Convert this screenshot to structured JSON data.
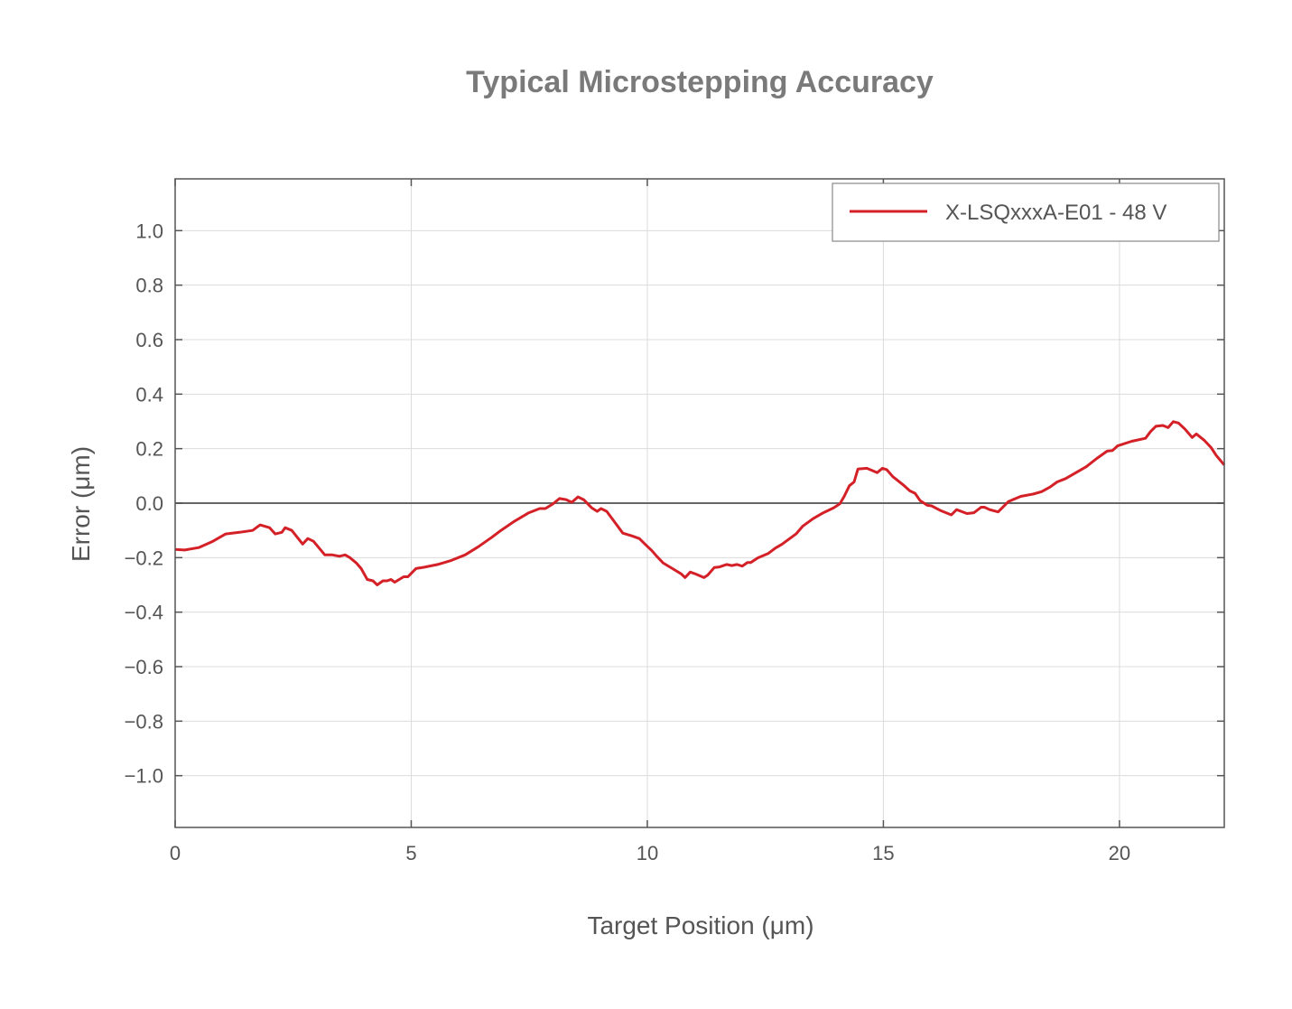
{
  "chart_data": {
    "type": "line",
    "title": "Typical Microstepping Accuracy",
    "xlabel": "Target Position (μm)",
    "ylabel": "Error (μm)",
    "xlim": [
      0,
      22.22
    ],
    "ylim": [
      -1.19,
      1.19
    ],
    "xticks": [
      0,
      5,
      10,
      15,
      20
    ],
    "xtick_labels": [
      "0",
      "5",
      "10",
      "15",
      "20"
    ],
    "yticks": [
      1.0,
      0.8,
      0.6,
      0.4,
      0.2,
      0.0,
      -0.2,
      -0.4,
      -0.6,
      -0.8,
      -1.0
    ],
    "ytick_labels": [
      "1.0",
      "0.8",
      "0.6",
      "0.4",
      "0.2",
      "0.0",
      "−0.2",
      "−0.4",
      "−0.6",
      "−0.8",
      "−1.0"
    ],
    "grid": true,
    "zero_line": true,
    "legend_position": "top-right",
    "series": [
      {
        "name": "X-LSQxxxA-E01 - 48 V",
        "color": "#d42027",
        "x": [
          0,
          0.2,
          0.5,
          0.8,
          1.07,
          1.36,
          1.64,
          1.8,
          2.0,
          2.12,
          2.26,
          2.33,
          2.47,
          2.7,
          2.81,
          2.93,
          3.17,
          3.33,
          3.48,
          3.6,
          3.7,
          3.84,
          3.94,
          4.07,
          4.19,
          4.28,
          4.4,
          4.49,
          4.57,
          4.65,
          4.84,
          4.93,
          5.1,
          5.28,
          5.56,
          5.85,
          6.14,
          6.42,
          6.71,
          6.9,
          7.19,
          7.48,
          7.72,
          7.84,
          8.0,
          8.14,
          8.28,
          8.4,
          8.53,
          8.65,
          8.82,
          8.94,
          9.02,
          9.14,
          9.31,
          9.48,
          9.67,
          9.83,
          9.98,
          10.1,
          10.2,
          10.34,
          10.53,
          10.72,
          10.8,
          10.91,
          11.02,
          11.2,
          11.28,
          11.42,
          11.53,
          11.68,
          11.79,
          11.9,
          12.01,
          12.12,
          12.19,
          12.34,
          12.56,
          12.71,
          12.85,
          13.15,
          13.29,
          13.51,
          13.73,
          13.95,
          14.08,
          14.17,
          14.28,
          14.38,
          14.46,
          14.65,
          14.87,
          14.98,
          15.07,
          15.2,
          15.42,
          15.56,
          15.67,
          15.78,
          15.93,
          16.02,
          16.22,
          16.44,
          16.55,
          16.77,
          16.92,
          17.07,
          17.14,
          17.25,
          17.43,
          17.65,
          17.76,
          17.91,
          18.17,
          18.35,
          18.53,
          18.68,
          18.86,
          19.08,
          19.3,
          19.52,
          19.74,
          19.85,
          19.96,
          20.26,
          20.55,
          20.66,
          20.77,
          20.92,
          21.03,
          21.14,
          21.25,
          21.39,
          21.54,
          21.63,
          21.8,
          21.94,
          22.05,
          22.22
        ],
        "y": [
          -0.17,
          -0.172,
          -0.163,
          -0.14,
          -0.113,
          -0.107,
          -0.1,
          -0.08,
          -0.09,
          -0.113,
          -0.107,
          -0.09,
          -0.1,
          -0.15,
          -0.13,
          -0.14,
          -0.19,
          -0.19,
          -0.195,
          -0.19,
          -0.2,
          -0.22,
          -0.24,
          -0.28,
          -0.285,
          -0.3,
          -0.285,
          -0.285,
          -0.28,
          -0.29,
          -0.27,
          -0.27,
          -0.24,
          -0.235,
          -0.225,
          -0.21,
          -0.19,
          -0.16,
          -0.125,
          -0.1,
          -0.066,
          -0.036,
          -0.02,
          -0.02,
          -0.003,
          0.017,
          0.013,
          0.003,
          0.023,
          0.013,
          -0.017,
          -0.03,
          -0.02,
          -0.03,
          -0.07,
          -0.11,
          -0.12,
          -0.13,
          -0.155,
          -0.175,
          -0.195,
          -0.22,
          -0.24,
          -0.26,
          -0.273,
          -0.253,
          -0.26,
          -0.273,
          -0.264,
          -0.236,
          -0.234,
          -0.225,
          -0.229,
          -0.225,
          -0.231,
          -0.218,
          -0.218,
          -0.201,
          -0.185,
          -0.165,
          -0.151,
          -0.113,
          -0.085,
          -0.057,
          -0.035,
          -0.017,
          -0.002,
          0.025,
          0.064,
          0.078,
          0.125,
          0.128,
          0.112,
          0.128,
          0.123,
          0.097,
          0.067,
          0.045,
          0.036,
          0.009,
          -0.008,
          -0.01,
          -0.028,
          -0.043,
          -0.024,
          -0.038,
          -0.035,
          -0.015,
          -0.015,
          -0.024,
          -0.032,
          0.006,
          0.014,
          0.025,
          0.033,
          0.042,
          0.059,
          0.078,
          0.09,
          0.112,
          0.134,
          0.164,
          0.191,
          0.193,
          0.21,
          0.227,
          0.238,
          0.263,
          0.282,
          0.285,
          0.277,
          0.299,
          0.294,
          0.271,
          0.241,
          0.254,
          0.23,
          0.204,
          0.175,
          0.14
        ]
      }
    ]
  }
}
